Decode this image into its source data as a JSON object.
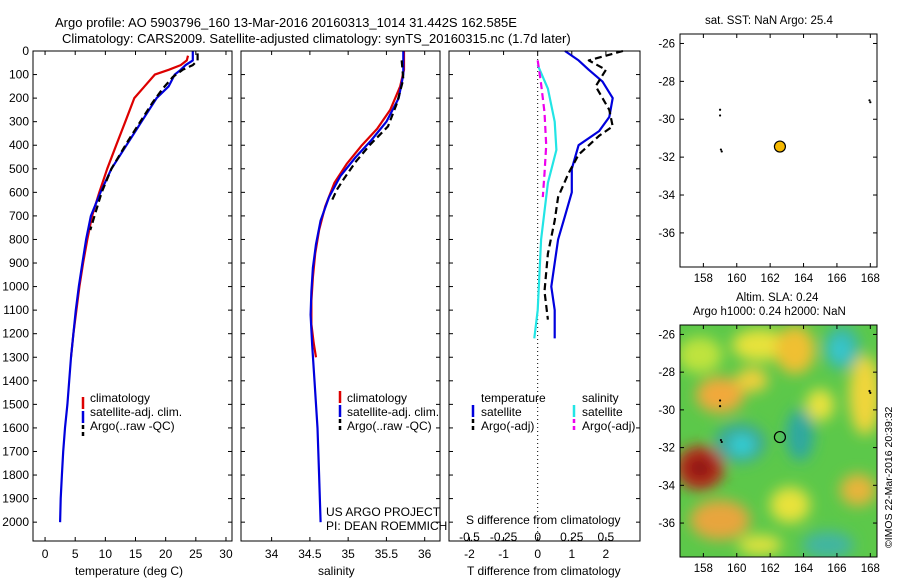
{
  "header": {
    "line1": "Argo profile: AO 5903796_160 13-Mar-2016 20160313_1014 31.442S 162.585E",
    "line2": "Climatology: CARS2009. Satellite-adjusted climatology: synTS_20160315.nc (1.7d later)"
  },
  "side_stamp": "©IMOS 22-Mar-2016 20:39:32",
  "colors": {
    "climatology": "#dd0000",
    "satellite": "#0000dd",
    "argo": "#000000",
    "salinity_sat": "#22e5e5",
    "salinity_argo": "#ee00ee",
    "float_marker": "#f5b800"
  },
  "chart_data": [
    {
      "type": "line",
      "id": "temperature",
      "xlabel": "temperature (deg C)",
      "ylabel": "",
      "xlim": [
        -2,
        31
      ],
      "ylim": [
        2080,
        0
      ],
      "y_inverted": true,
      "x_ticks": [
        0,
        5,
        10,
        15,
        20,
        25,
        30
      ],
      "y_ticks": [
        0,
        100,
        200,
        300,
        400,
        500,
        600,
        700,
        800,
        900,
        1000,
        1100,
        1200,
        1300,
        1400,
        1500,
        1600,
        1700,
        1800,
        1900,
        2000
      ],
      "legend": [
        "climatology",
        "satellite-adj. clim.",
        "Argo(..raw -QC)"
      ],
      "series": [
        {
          "name": "climatology",
          "style": "solid",
          "color": "#dd0000",
          "points": [
            [
              23.7,
              20
            ],
            [
              23.5,
              40
            ],
            [
              22.5,
              60
            ],
            [
              20.5,
              80
            ],
            [
              18.2,
              100
            ],
            [
              16.5,
              150
            ],
            [
              14.8,
              200
            ],
            [
              13.3,
              300
            ],
            [
              11.8,
              400
            ],
            [
              10.3,
              500
            ],
            [
              9.0,
              600
            ],
            [
              7.8,
              700
            ],
            [
              7.0,
              800
            ],
            [
              6.3,
              900
            ],
            [
              5.7,
              1000
            ],
            [
              5.2,
              1100
            ],
            [
              4.7,
              1200
            ],
            [
              4.3,
              1300
            ]
          ]
        },
        {
          "name": "satellite-adj. clim.",
          "style": "solid",
          "color": "#0000dd",
          "points": [
            [
              24.5,
              0
            ],
            [
              24.5,
              40
            ],
            [
              23.3,
              60
            ],
            [
              22.5,
              80
            ],
            [
              21.5,
              100
            ],
            [
              20.5,
              150
            ],
            [
              18.5,
              200
            ],
            [
              16.0,
              300
            ],
            [
              13.5,
              400
            ],
            [
              11.0,
              500
            ],
            [
              9.2,
              600
            ],
            [
              7.6,
              700
            ],
            [
              6.8,
              800
            ],
            [
              6.2,
              900
            ],
            [
              5.6,
              1000
            ],
            [
              5.1,
              1100
            ],
            [
              4.7,
              1200
            ],
            [
              4.3,
              1300
            ],
            [
              4.0,
              1400
            ],
            [
              3.7,
              1500
            ],
            [
              3.3,
              1600
            ],
            [
              3.0,
              1700
            ],
            [
              2.8,
              1800
            ],
            [
              2.6,
              1900
            ],
            [
              2.5,
              2000
            ]
          ]
        },
        {
          "name": "Argo(..raw -QC)",
          "style": "dashed",
          "color": "#000000",
          "points": [
            [
              25.3,
              10
            ],
            [
              25.3,
              40
            ],
            [
              24.5,
              60
            ],
            [
              22.8,
              80
            ],
            [
              21.2,
              110
            ],
            [
              19.5,
              160
            ],
            [
              17.8,
              220
            ],
            [
              15.8,
              300
            ],
            [
              13.8,
              380
            ],
            [
              11.0,
              500
            ],
            [
              9.4,
              600
            ],
            [
              8.2,
              700
            ],
            [
              7.5,
              760
            ]
          ]
        }
      ]
    },
    {
      "type": "line",
      "id": "salinity",
      "xlabel": "salinity",
      "ylabel": "",
      "xlim": [
        33.6,
        36.2
      ],
      "ylim": [
        2080,
        0
      ],
      "y_inverted": true,
      "x_ticks": [
        34,
        34.5,
        35,
        35.5,
        36
      ],
      "legend": [
        "climatology",
        "satellite-adj. clim.",
        "Argo(..raw -QC)"
      ],
      "annotation": [
        "US ARGO PROJECT",
        "PI: DEAN ROEMMICH"
      ],
      "series": [
        {
          "name": "climatology",
          "style": "solid",
          "color": "#dd0000",
          "points": [
            [
              35.73,
              0
            ],
            [
              35.73,
              80
            ],
            [
              35.68,
              150
            ],
            [
              35.55,
              250
            ],
            [
              35.38,
              330
            ],
            [
              35.18,
              400
            ],
            [
              34.98,
              480
            ],
            [
              34.82,
              560
            ],
            [
              34.7,
              660
            ],
            [
              34.62,
              760
            ],
            [
              34.57,
              860
            ],
            [
              34.54,
              960
            ],
            [
              34.52,
              1060
            ],
            [
              34.52,
              1160
            ],
            [
              34.55,
              1240
            ],
            [
              34.58,
              1300
            ]
          ]
        },
        {
          "name": "satellite-adj. clim.",
          "style": "solid",
          "color": "#0000dd",
          "points": [
            [
              35.72,
              0
            ],
            [
              35.72,
              100
            ],
            [
              35.66,
              200
            ],
            [
              35.5,
              300
            ],
            [
              35.3,
              380
            ],
            [
              35.1,
              450
            ],
            [
              34.9,
              530
            ],
            [
              34.75,
              620
            ],
            [
              34.64,
              720
            ],
            [
              34.58,
              820
            ],
            [
              34.54,
              920
            ],
            [
              34.52,
              1020
            ],
            [
              34.51,
              1120
            ],
            [
              34.53,
              1250
            ],
            [
              34.56,
              1400
            ],
            [
              34.6,
              1600
            ],
            [
              34.62,
              1800
            ],
            [
              34.64,
              2000
            ]
          ]
        },
        {
          "name": "Argo(..raw -QC)",
          "style": "dashed",
          "color": "#000000",
          "points": [
            [
              35.7,
              40
            ],
            [
              35.72,
              120
            ],
            [
              35.64,
              220
            ],
            [
              35.52,
              320
            ],
            [
              35.4,
              360
            ],
            [
              35.28,
              400
            ],
            [
              35.1,
              470
            ],
            [
              34.95,
              540
            ],
            [
              34.85,
              590
            ],
            [
              34.78,
              640
            ]
          ]
        }
      ]
    },
    {
      "type": "line",
      "id": "difference",
      "xlabel": "T difference from climatology",
      "xlabel_top": "S difference from climatology",
      "xlim": [
        -2.6,
        3.0
      ],
      "ylim": [
        2080,
        0
      ],
      "y_inverted": true,
      "x_ticks": [
        -2,
        -1,
        0,
        1,
        2
      ],
      "x_ticks_s": [
        "-0.5",
        "-0.25",
        "0",
        "0.25",
        "0.5"
      ],
      "legend_headers": [
        "temperature",
        "salinity"
      ],
      "legend": [
        "satellite",
        "Argo(-adj)",
        "satellite",
        "Argo(-adj)"
      ],
      "series": [
        {
          "name": "temperature satellite",
          "style": "solid",
          "color": "#0000dd",
          "points": [
            [
              0.8,
              0
            ],
            [
              1.2,
              40
            ],
            [
              1.5,
              80
            ],
            [
              1.9,
              130
            ],
            [
              2.2,
              200
            ],
            [
              2.1,
              280
            ],
            [
              1.8,
              340
            ],
            [
              1.2,
              400
            ],
            [
              1.0,
              500
            ],
            [
              1.0,
              600
            ],
            [
              0.8,
              700
            ],
            [
              0.6,
              800
            ],
            [
              0.5,
              900
            ],
            [
              0.4,
              1000
            ],
            [
              0.5,
              1100
            ],
            [
              0.5,
              1200
            ],
            [
              0.5,
              1220
            ]
          ]
        },
        {
          "name": "temperature Argo(-adj)",
          "style": "dashed",
          "color": "#000000",
          "points": [
            [
              2.5,
              0
            ],
            [
              1.5,
              40
            ],
            [
              2.0,
              80
            ],
            [
              1.7,
              150
            ],
            [
              2.1,
              250
            ],
            [
              2.2,
              320
            ],
            [
              1.8,
              360
            ],
            [
              1.2,
              440
            ],
            [
              0.9,
              520
            ],
            [
              0.6,
              620
            ],
            [
              0.5,
              720
            ],
            [
              0.3,
              860
            ],
            [
              0.2,
              1020
            ],
            [
              0.3,
              1140
            ]
          ]
        },
        {
          "name": "salinity satellite",
          "style": "solid",
          "color": "#22e5e5",
          "points": [
            [
              0.0,
              60
            ],
            [
              0.3,
              160
            ],
            [
              0.5,
              300
            ],
            [
              0.55,
              420
            ],
            [
              0.3,
              560
            ],
            [
              0.1,
              800
            ],
            [
              0.0,
              1100
            ],
            [
              -0.1,
              1220
            ]
          ]
        },
        {
          "name": "salinity Argo(-adj)",
          "style": "dashed",
          "color": "#ee00ee",
          "points": [
            [
              0.0,
              40
            ],
            [
              0.1,
              140
            ],
            [
              0.2,
              260
            ],
            [
              0.25,
              400
            ],
            [
              0.2,
              520
            ],
            [
              0.15,
              620
            ]
          ]
        }
      ]
    },
    {
      "type": "scatter",
      "id": "sst_map",
      "title": "sat. SST: NaN Argo: 25.4",
      "xlim": [
        156.6,
        168.4
      ],
      "ylim": [
        -37.8,
        -25.5
      ],
      "x_ticks": [
        158,
        160,
        162,
        164,
        166,
        168
      ],
      "y_ticks": [
        -26,
        -28,
        -30,
        -32,
        -34,
        -36
      ],
      "points": [
        {
          "lon": 162.585,
          "lat": -31.442,
          "label": "Argo"
        }
      ]
    },
    {
      "type": "heatmap",
      "id": "sla_map",
      "title": [
        "Altim. SLA: 0.24",
        "Argo h1000: 0.24 h2000: NaN"
      ],
      "xlim": [
        156.6,
        168.4
      ],
      "ylim": [
        -37.8,
        -25.5
      ],
      "x_ticks": [
        158,
        160,
        162,
        164,
        166,
        168
      ],
      "y_ticks": [
        -26,
        -28,
        -30,
        -32,
        -34,
        -36
      ],
      "points": [
        {
          "lon": 162.585,
          "lat": -31.442,
          "label": "Argo"
        }
      ]
    }
  ]
}
